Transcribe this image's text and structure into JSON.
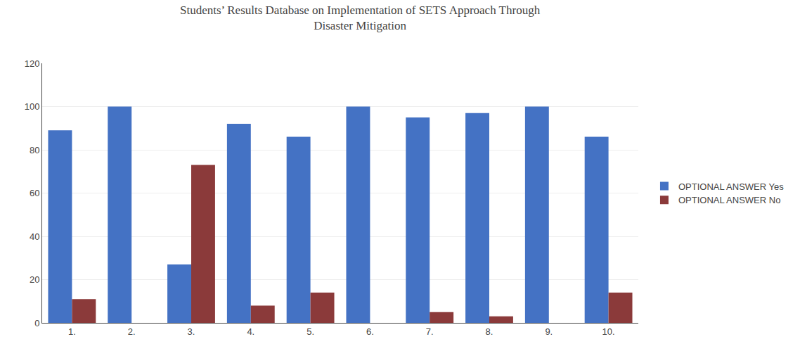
{
  "chart_data": {
    "type": "bar",
    "title": "Students’ Results Database on Implementation of SETS Approach Through\nDisaster Mitigation",
    "categories": [
      "1.",
      "2.",
      "3.",
      "4.",
      "5.",
      "6.",
      "7.",
      "8.",
      "9.",
      "10."
    ],
    "series": [
      {
        "name": "OPTIONAL ANSWER Yes",
        "color": "#4472C4",
        "values": [
          89,
          100,
          27,
          92,
          86,
          100,
          95,
          97,
          100,
          86
        ]
      },
      {
        "name": "OPTIONAL ANSWER No",
        "color": "#8B3A3A",
        "values": [
          11,
          0,
          73,
          8,
          14,
          0,
          5,
          3,
          0,
          14
        ]
      }
    ],
    "ylim": [
      0,
      120
    ],
    "yticks": [
      0,
      20,
      40,
      60,
      80,
      100,
      120
    ],
    "grid": true,
    "legend": "right"
  }
}
